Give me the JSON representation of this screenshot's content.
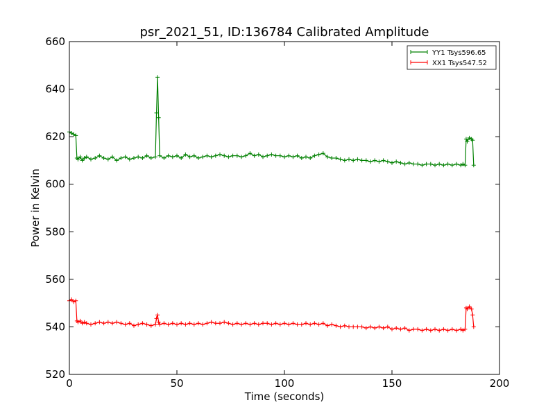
{
  "chart_data": {
    "type": "line",
    "title": "psr_2021_51, ID:136784 Calibrated Amplitude",
    "xlabel": "Time (seconds)",
    "ylabel": "Power in Kelvin",
    "xlim": [
      0,
      200
    ],
    "ylim": [
      520,
      660
    ],
    "xticks": [
      0,
      50,
      100,
      150,
      200
    ],
    "yticks": [
      520,
      540,
      560,
      580,
      600,
      620,
      640,
      660
    ],
    "grid": false,
    "legend_position": "top-right",
    "series": [
      {
        "name": "YY1 Tsys596.65",
        "color": "#008000",
        "marker": "+",
        "x": [
          0,
          1,
          2,
          3,
          3.5,
          4,
          5,
          6,
          7,
          8,
          10,
          12,
          14,
          16,
          18,
          20,
          22,
          24,
          26,
          28,
          30,
          32,
          34,
          36,
          38,
          40,
          40.5,
          41,
          41.5,
          42,
          44,
          46,
          48,
          50,
          52,
          54,
          56,
          58,
          60,
          62,
          64,
          66,
          68,
          70,
          72,
          74,
          76,
          78,
          80,
          82,
          84,
          86,
          88,
          90,
          92,
          94,
          96,
          98,
          100,
          102,
          104,
          106,
          108,
          110,
          112,
          114,
          116,
          118,
          120,
          122,
          124,
          126,
          128,
          130,
          132,
          134,
          136,
          138,
          140,
          142,
          144,
          146,
          148,
          150,
          152,
          154,
          156,
          158,
          160,
          162,
          164,
          166,
          168,
          170,
          172,
          174,
          176,
          178,
          180,
          182,
          183,
          184,
          184.5,
          185,
          186,
          187,
          187.5,
          188
        ],
        "y": [
          622,
          621.5,
          621,
          620.5,
          611,
          610.5,
          611.5,
          610,
          611,
          611.5,
          610.5,
          611,
          612,
          611,
          610.5,
          611.5,
          610,
          611,
          611.5,
          610.5,
          611,
          611.5,
          611,
          612,
          611,
          611.5,
          630,
          645,
          628,
          612,
          611,
          612,
          611.5,
          612,
          611,
          612.5,
          611.5,
          612,
          611,
          611.5,
          612,
          611.5,
          612,
          612.5,
          612,
          611.5,
          612,
          612,
          611.5,
          612,
          613,
          612,
          612.5,
          611.5,
          612,
          612.5,
          612,
          612,
          611.5,
          612,
          611.5,
          612,
          611,
          611.5,
          611,
          612,
          612.5,
          613,
          611.5,
          611,
          611,
          610.5,
          610,
          610.5,
          610,
          610.5,
          610,
          610,
          609.5,
          610,
          609.5,
          610,
          609.5,
          609,
          609.5,
          609,
          608.5,
          609,
          608.5,
          608.5,
          608,
          608.5,
          608.5,
          608,
          608.5,
          608,
          608.5,
          608,
          608.5,
          608,
          608.5,
          608,
          619,
          618,
          619.5,
          619,
          618.5,
          608
        ]
      },
      {
        "name": "XX1 Tsys547.52",
        "color": "#ff0000",
        "marker": "+",
        "x": [
          0,
          1,
          2,
          3,
          3.5,
          4,
          5,
          6,
          7,
          8,
          10,
          12,
          14,
          16,
          18,
          20,
          22,
          24,
          26,
          28,
          30,
          32,
          34,
          36,
          38,
          40,
          40.5,
          41,
          41.5,
          42,
          44,
          46,
          48,
          50,
          52,
          54,
          56,
          58,
          60,
          62,
          64,
          66,
          68,
          70,
          72,
          74,
          76,
          78,
          80,
          82,
          84,
          86,
          88,
          90,
          92,
          94,
          96,
          98,
          100,
          102,
          104,
          106,
          108,
          110,
          112,
          114,
          116,
          118,
          120,
          122,
          124,
          126,
          128,
          130,
          132,
          134,
          136,
          138,
          140,
          142,
          144,
          146,
          148,
          150,
          152,
          154,
          156,
          158,
          160,
          162,
          164,
          166,
          168,
          170,
          172,
          174,
          176,
          178,
          180,
          182,
          183,
          184,
          184.5,
          185,
          186,
          187,
          187.5,
          188
        ],
        "y": [
          551,
          551.5,
          550.5,
          551,
          542.5,
          542,
          542.5,
          541.5,
          542,
          541.5,
          541,
          541.5,
          542,
          541.5,
          542,
          541.5,
          542,
          541.5,
          541,
          541.5,
          540.5,
          541,
          541.5,
          541,
          540.5,
          541,
          543.5,
          545,
          542,
          541,
          541.5,
          541,
          541.5,
          541,
          541.5,
          541,
          541.5,
          541,
          541.5,
          541,
          541.5,
          542,
          541.5,
          541.5,
          542,
          541.5,
          541,
          541.5,
          541,
          541.5,
          541,
          541.5,
          541,
          541.5,
          541.5,
          541,
          541.5,
          541,
          541.5,
          541,
          541.5,
          541,
          541,
          541.5,
          541,
          541.5,
          541,
          541.5,
          540.5,
          541,
          540.5,
          540,
          540.5,
          540,
          540,
          540,
          540,
          539.5,
          540,
          539.5,
          540,
          539.5,
          540,
          539,
          539.5,
          539,
          539.5,
          538.5,
          539,
          539,
          538.5,
          539,
          538.5,
          539,
          538.5,
          539,
          538.5,
          539,
          538.5,
          539,
          538.5,
          539,
          548,
          547.5,
          548.5,
          547.5,
          545,
          540
        ]
      }
    ]
  }
}
